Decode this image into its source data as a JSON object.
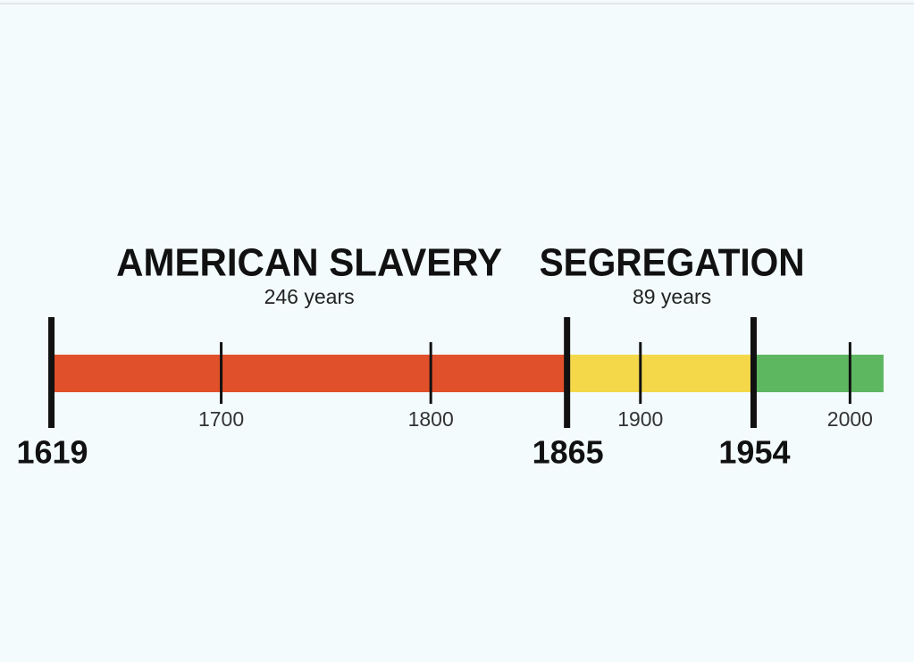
{
  "chart_data": {
    "type": "timeline",
    "xlim": [
      1603,
      2022
    ],
    "segments": [
      {
        "name": "AMERICAN SLAVERY",
        "duration": "246 years",
        "start": 1619,
        "end": 1865,
        "color": "#e0502a"
      },
      {
        "name": "SEGREGATION",
        "duration": "89 years",
        "start": 1865,
        "end": 1954,
        "color": "#f4d84a"
      },
      {
        "start": 1954,
        "end": 2016,
        "color": "#5db760"
      }
    ],
    "major_ticks": [
      1619,
      1865,
      1954
    ],
    "xticks": [
      1700,
      1800,
      1900,
      2000
    ]
  }
}
